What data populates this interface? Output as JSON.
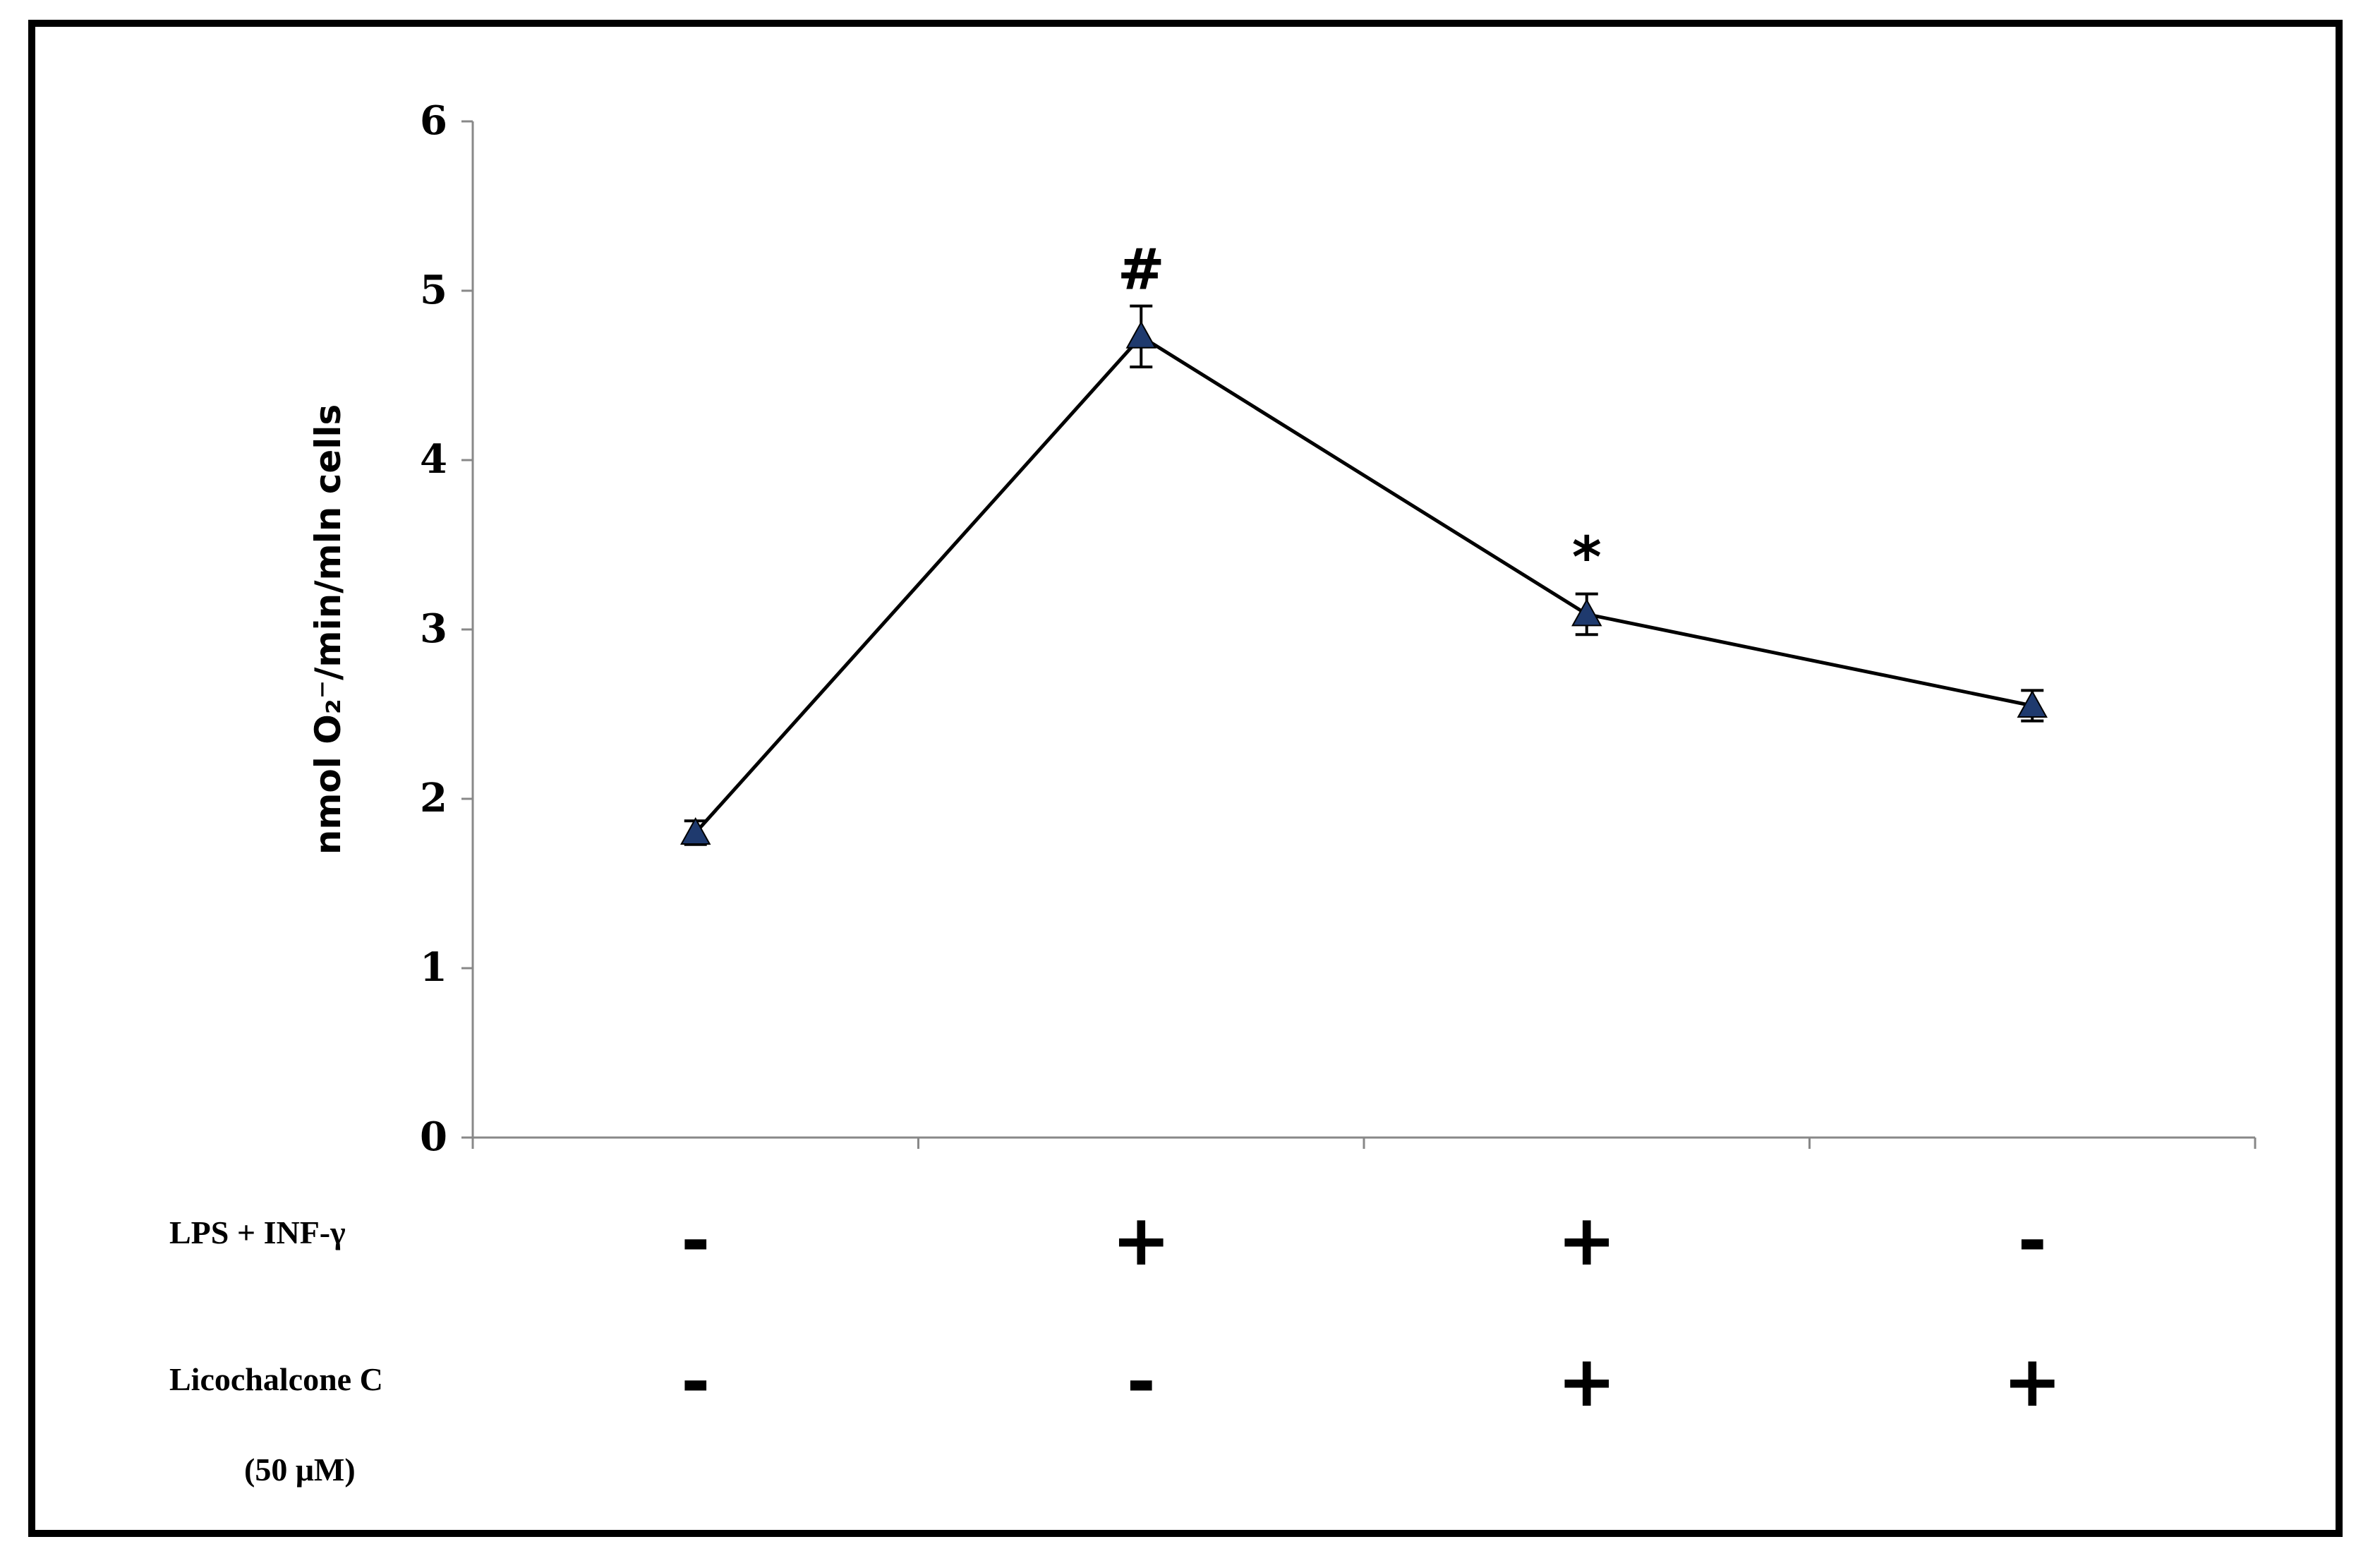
{
  "chart_data": {
    "type": "line",
    "ylabel": "nmol O₂⁻/min/mln cells",
    "ylim": [
      0,
      6
    ],
    "yticks": [
      0,
      1,
      2,
      3,
      4,
      5,
      6
    ],
    "grid": false,
    "legend": "none",
    "x": [
      1,
      2,
      3,
      4
    ],
    "series": [
      {
        "values": [
          1.8,
          4.73,
          3.09,
          2.55
        ],
        "errors": [
          0.07,
          0.18,
          0.12,
          0.09
        ],
        "color": "#000000",
        "marker_color": "#1f3a6e",
        "marker": "triangle"
      }
    ],
    "annotations": [
      {
        "x": 2,
        "text": "#"
      },
      {
        "x": 3,
        "text": "*"
      }
    ],
    "treatment_rows": [
      {
        "label": "LPS + INF-γ",
        "signs": [
          "-",
          "+",
          "+",
          "-"
        ]
      },
      {
        "label": "Licochalcone C",
        "sublabel": "(50 μM)",
        "signs": [
          "-",
          "-",
          "+",
          "+"
        ]
      }
    ]
  }
}
